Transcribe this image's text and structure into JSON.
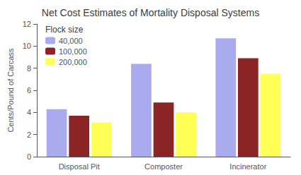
{
  "chart_data": {
    "type": "bar",
    "title": "Net Cost Estimates of Mortality Disposal Systems",
    "ylabel": "Cents/Pound of Carcass",
    "legend_title": "Flock size",
    "categories": [
      "Disposal Pit",
      "Composter",
      "Incinerator"
    ],
    "series": [
      {
        "name": "40,000",
        "color": "#aaaaee",
        "values": [
          4.3,
          8.4,
          10.7
        ]
      },
      {
        "name": "100,000",
        "color": "#8b2525",
        "values": [
          3.7,
          4.9,
          8.9
        ]
      },
      {
        "name": "200,000",
        "color": "#ffff55",
        "values": [
          3.1,
          4.0,
          7.5
        ]
      }
    ],
    "ylim": [
      0,
      12
    ],
    "yticks": [
      0,
      2,
      4,
      6,
      8,
      10,
      12
    ],
    "grid": false,
    "legend": "upper left"
  }
}
